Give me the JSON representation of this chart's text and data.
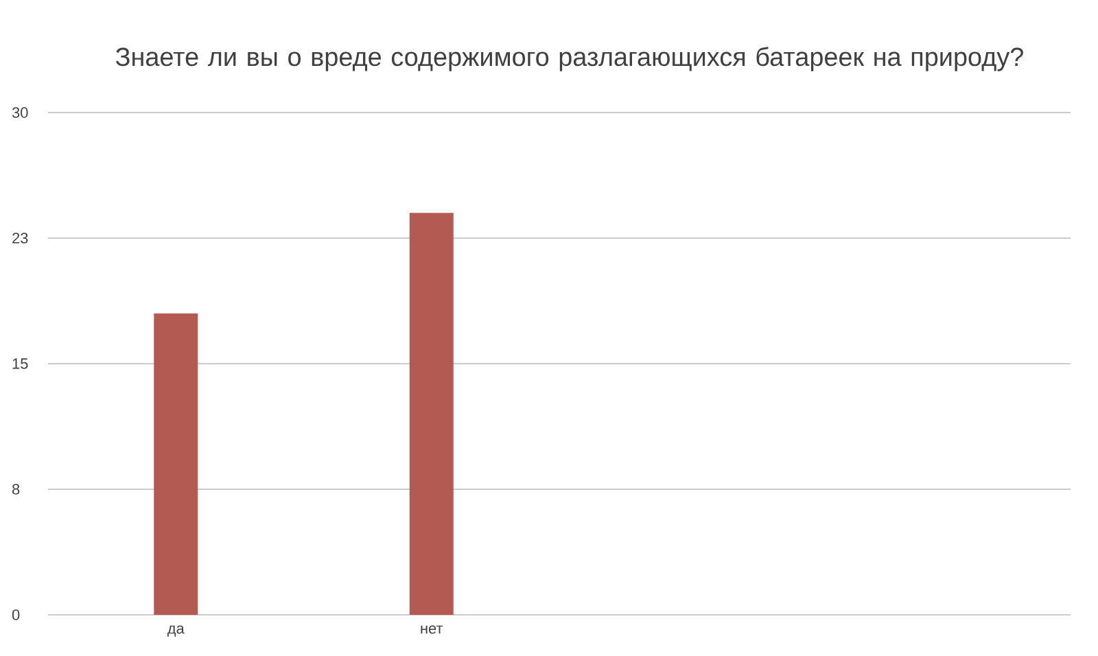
{
  "chart_data": {
    "type": "bar",
    "title": "Знаете ли вы о вреде содержимого разлагающихся  батареек на природу?",
    "categories": [
      "да",
      "нет",
      null,
      null
    ],
    "values": [
      18,
      24,
      null,
      null
    ],
    "color": "#b35a52",
    "ylim": [
      0,
      30
    ],
    "yticks": [
      0,
      {
        "value": 7.5,
        "label": "8"
      },
      15,
      {
        "value": 22.5,
        "label": "23"
      },
      30
    ],
    "grid": "y"
  }
}
